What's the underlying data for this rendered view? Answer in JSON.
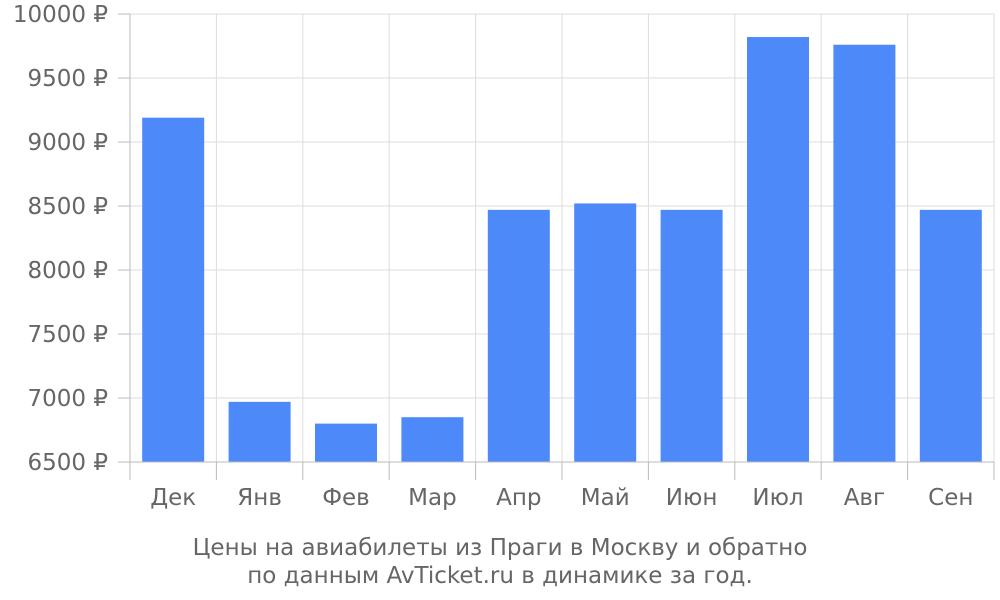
{
  "chart_data": {
    "type": "bar",
    "categories": [
      "Дек",
      "Янв",
      "Фев",
      "Мар",
      "Апр",
      "Май",
      "Июн",
      "Июл",
      "Авг",
      "Сен"
    ],
    "values": [
      9190,
      6970,
      6800,
      6850,
      8470,
      8520,
      8470,
      9820,
      9760,
      8470
    ],
    "ylim": [
      6500,
      10000
    ],
    "yticks": [
      6500,
      7000,
      7500,
      8000,
      8500,
      9000,
      9500,
      10000
    ],
    "ytick_labels": [
      "6500 ₽",
      "7000 ₽",
      "7500 ₽",
      "8000 ₽",
      "8500 ₽",
      "9000 ₽",
      "9500 ₽",
      "10000 ₽"
    ],
    "grid": true,
    "bar_color": "#4e89fa",
    "caption_line1": "Цены на авиабилеты из Праги в Москву и обратно",
    "caption_line2": "по данным AvTicket.ru в динамике за год."
  }
}
